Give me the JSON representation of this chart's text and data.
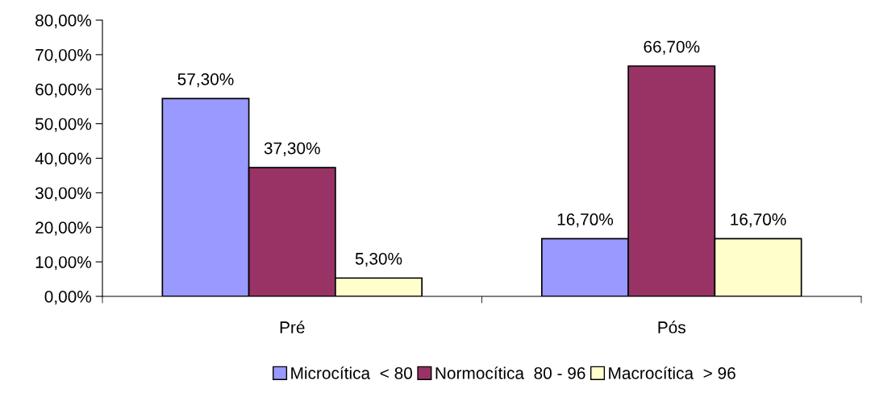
{
  "chart_data": {
    "type": "bar",
    "categories": [
      "Pré",
      "Pós"
    ],
    "series": [
      {
        "name": "Microcítica  < 80",
        "color": "#9999ff",
        "values": [
          57.3,
          16.7
        ],
        "value_labels": [
          "57,30%",
          "16,70%"
        ]
      },
      {
        "name": "Normocítica  80 - 96",
        "color": "#993366",
        "values": [
          37.3,
          66.7
        ],
        "value_labels": [
          "37,30%",
          "66,70%"
        ]
      },
      {
        "name": "Macrocítica  > 96",
        "color": "#ffffcc",
        "values": [
          5.3,
          16.7
        ],
        "value_labels": [
          "5,30%",
          "16,70%"
        ]
      }
    ],
    "ylim": [
      0,
      80
    ],
    "yticks": [
      {
        "value": 0,
        "label": "0,00%"
      },
      {
        "value": 10,
        "label": "10,00%"
      },
      {
        "value": 20,
        "label": "20,00%"
      },
      {
        "value": 30,
        "label": "30,00%"
      },
      {
        "value": 40,
        "label": "40,00%"
      },
      {
        "value": 50,
        "label": "50,00%"
      },
      {
        "value": 60,
        "label": "60,00%"
      },
      {
        "value": 70,
        "label": "70,00%"
      },
      {
        "value": 80,
        "label": "80,00%"
      }
    ],
    "grid": false,
    "legend": "bottom"
  }
}
